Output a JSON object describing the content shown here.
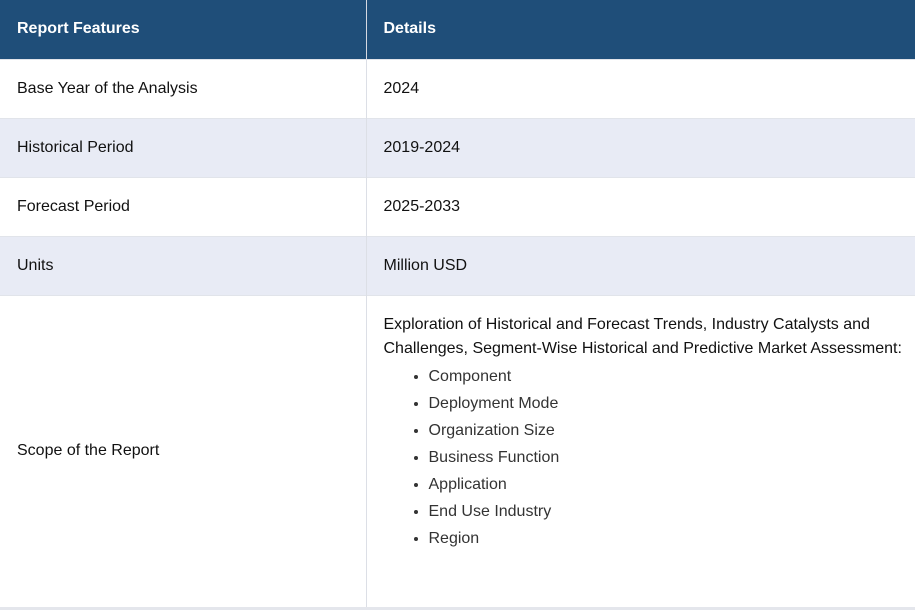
{
  "header": {
    "col1": "Report Features",
    "col2": "Details"
  },
  "rows": [
    {
      "feature": "Base Year of the Analysis",
      "detail": "2024"
    },
    {
      "feature": "Historical Period",
      "detail": "2019-2024"
    },
    {
      "feature": "Forecast Period",
      "detail": "2025-2033"
    },
    {
      "feature": "Units",
      "detail": "Million USD"
    }
  ],
  "scope": {
    "feature": "Scope of the Report",
    "intro": "Exploration of Historical and Forecast Trends, Industry Catalysts and Challenges, Segment-Wise Historical and Predictive Market Assessment:",
    "items": [
      "Component",
      "Deployment Mode",
      "Organization Size",
      "Business Function",
      "Application",
      "End Use Industry",
      "Region"
    ]
  },
  "colors": {
    "header_bg": "#1f4e79",
    "header_text": "#ffffff",
    "alt_row_bg": "#e8ebf5"
  }
}
